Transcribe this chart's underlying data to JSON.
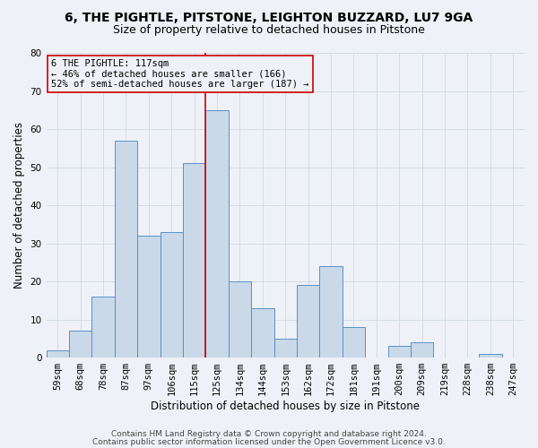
{
  "title1": "6, THE PIGHTLE, PITSTONE, LEIGHTON BUZZARD, LU7 9GA",
  "title2": "Size of property relative to detached houses in Pitstone",
  "xlabel": "Distribution of detached houses by size in Pitstone",
  "ylabel": "Number of detached properties",
  "categories": [
    "59sqm",
    "68sqm",
    "78sqm",
    "87sqm",
    "97sqm",
    "106sqm",
    "115sqm",
    "125sqm",
    "134sqm",
    "144sqm",
    "153sqm",
    "162sqm",
    "172sqm",
    "181sqm",
    "191sqm",
    "200sqm",
    "209sqm",
    "219sqm",
    "228sqm",
    "238sqm",
    "247sqm"
  ],
  "values": [
    2,
    7,
    16,
    57,
    32,
    33,
    51,
    65,
    20,
    13,
    5,
    19,
    24,
    8,
    0,
    3,
    4,
    0,
    0,
    1,
    0
  ],
  "bar_width": 1.0,
  "bar_facecolor": "#c9d9e8",
  "bar_edgecolor": "#5b8fc9",
  "grid_color": "#d0d8e4",
  "background_color": "#eef2f8",
  "vline_x": 6,
  "vline_color": "#cc0000",
  "annotation_line1": "6 THE PIGHTLE: 117sqm",
  "annotation_line2": "← 46% of detached houses are smaller (166)",
  "annotation_line3": "52% of semi-detached houses are larger (187) →",
  "annotation_box_edgecolor": "#cc0000",
  "ylim": [
    0,
    80
  ],
  "yticks": [
    0,
    10,
    20,
    30,
    40,
    50,
    60,
    70,
    80
  ],
  "footer1": "Contains HM Land Registry data © Crown copyright and database right 2024.",
  "footer2": "Contains public sector information licensed under the Open Government Licence v3.0.",
  "title1_fontsize": 10,
  "title2_fontsize": 9,
  "xlabel_fontsize": 8.5,
  "ylabel_fontsize": 8.5,
  "tick_fontsize": 7.5,
  "footer_fontsize": 6.5,
  "annot_fontsize": 7.5
}
